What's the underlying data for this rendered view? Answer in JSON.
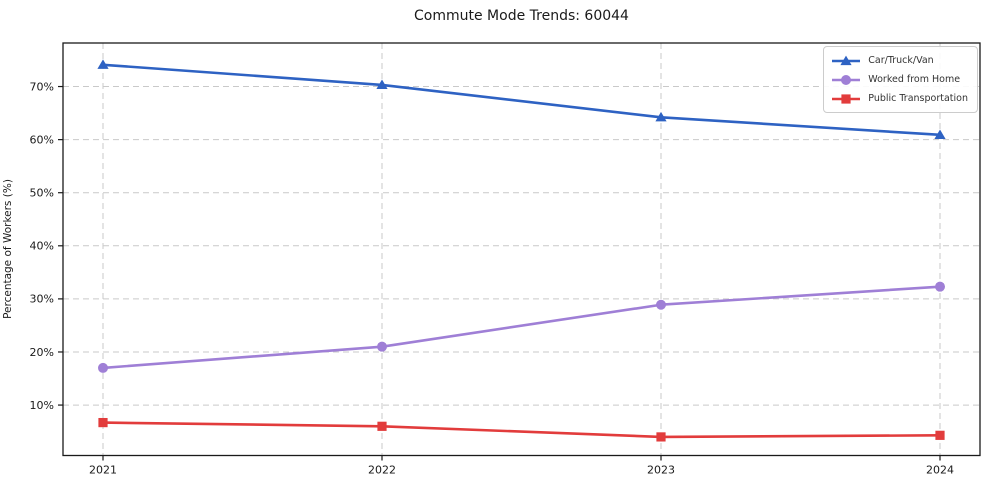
{
  "chart_data": {
    "type": "line",
    "title": "Commute Mode Trends: 60044",
    "xlabel": "",
    "ylabel": "Percentage of Workers (%)",
    "categories": [
      "2021",
      "2022",
      "2023",
      "2024"
    ],
    "series": [
      {
        "name": "Car/Truck/Van",
        "color": "#2e62c3",
        "marker": "triangle",
        "values": [
          74.1,
          70.3,
          64.2,
          60.9
        ]
      },
      {
        "name": "Worked from Home",
        "color": "#9f7fd6",
        "marker": "circle",
        "values": [
          17.0,
          21.0,
          28.9,
          32.3
        ]
      },
      {
        "name": "Public Transportation",
        "color": "#e23c3c",
        "marker": "square",
        "values": [
          6.7,
          6.0,
          4.0,
          4.3
        ]
      }
    ],
    "yticks": [
      10,
      20,
      30,
      40,
      50,
      60,
      70
    ],
    "ytick_suffix": "%",
    "ylim": [
      0.5,
      78.2
    ],
    "grid": true,
    "grid_style": "dashed",
    "legend_position": "upper right",
    "colors": {
      "axis": "#1a1a1a",
      "grid": "#c9c9c9",
      "text": "#1a1a1a",
      "background": "#ffffff"
    }
  }
}
